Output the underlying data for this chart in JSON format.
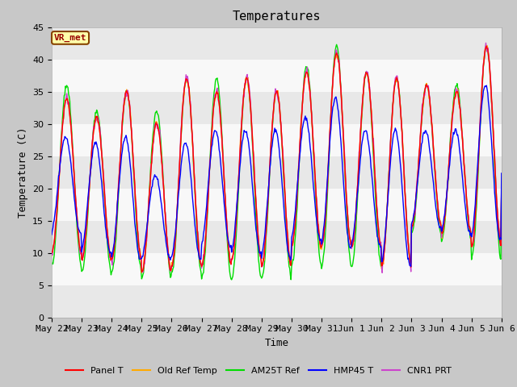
{
  "title": "Temperatures",
  "xlabel": "Time",
  "ylabel": "Temperature (C)",
  "ylim": [
    0,
    45
  ],
  "yticks": [
    0,
    5,
    10,
    15,
    20,
    25,
    30,
    35,
    40,
    45
  ],
  "x_labels": [
    "May 22",
    "May 23",
    "May 24",
    "May 25",
    "May 26",
    "May 27",
    "May 28",
    "May 29",
    "May 30",
    "May 31",
    "Jun 1",
    "Jun 2",
    "Jun 3",
    "Jun 4",
    "Jun 5",
    "Jun 6"
  ],
  "annotation_text": "VR_met",
  "colors": {
    "Panel_T": "#ff0000",
    "Old_Ref_Temp": "#ffaa00",
    "AM25T_Ref": "#00dd00",
    "HMP45_T": "#0000ff",
    "CNR1_PRT": "#cc44cc"
  },
  "legend_labels": [
    "Panel T",
    "Old Ref Temp",
    "AM25T Ref",
    "HMP45 T",
    "CNR1 PRT"
  ],
  "fig_bg_color": "#c8c8c8",
  "plot_bg_color": "#ffffff",
  "band_colors": [
    "#e8e8e8",
    "#f8f8f8"
  ],
  "title_fontsize": 11,
  "axis_label_fontsize": 9,
  "tick_fontsize": 8
}
